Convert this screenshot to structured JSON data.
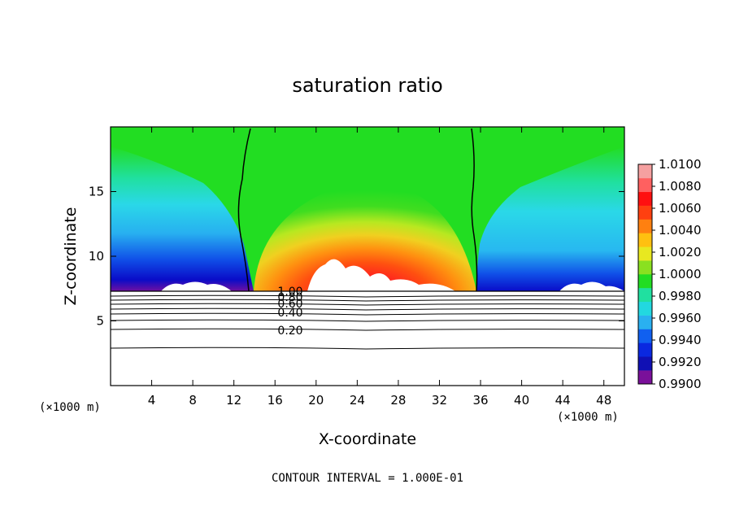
{
  "chart_data": {
    "type": "heatmap",
    "title": "saturation ratio",
    "xlabel": "X-coordinate",
    "ylabel": "Z-coordinate",
    "x_unit": "(×1000 m)",
    "x_unit_right": "(×1000 m)",
    "xlim": [
      0,
      50
    ],
    "ylim": [
      0,
      20
    ],
    "x_ticks": [
      "4",
      "8",
      "12",
      "16",
      "20",
      "24",
      "28",
      "32",
      "36",
      "40",
      "44",
      "48"
    ],
    "y_ticks": [
      "5",
      "10",
      "15"
    ],
    "colorbar": {
      "range": [
        0.99,
        1.01
      ],
      "labels": [
        "1.0100",
        "1.0080",
        "1.0060",
        "1.0040",
        "1.0020",
        "1.0000",
        "0.9980",
        "0.9960",
        "0.9940",
        "0.9920",
        "0.9900"
      ]
    },
    "contour_labels": [
      "1.00",
      "0.80",
      "0.60",
      "0.40",
      "0.20"
    ],
    "annotation": "CONTOUR INTERVAL = 1.000E-01"
  }
}
